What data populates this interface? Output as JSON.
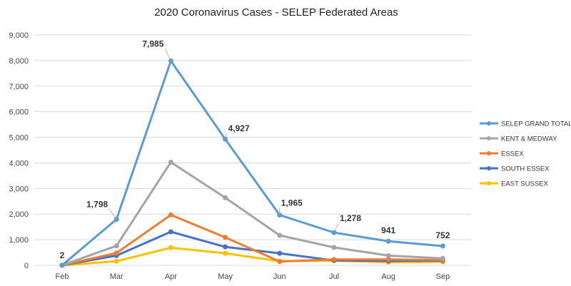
{
  "chart_data": {
    "type": "line",
    "title": "2020 Coronavirus Cases - SELEP Federated Areas",
    "xlabel": "",
    "ylabel": "",
    "categories": [
      "Feb",
      "Mar",
      "Apr",
      "May",
      "Jun",
      "Jul",
      "Aug",
      "Sep"
    ],
    "ylim": [
      0,
      9000
    ],
    "yticks": [
      "0",
      "1,000",
      "2,000",
      "3,000",
      "4,000",
      "5,000",
      "6,000",
      "7,000",
      "8,000",
      "9,000"
    ],
    "grid": true,
    "legend_position": "right",
    "series": [
      {
        "name": "SELEP GRAND TOTAL",
        "color": "#5B9BD5",
        "values": [
          2,
          1798,
          7985,
          4927,
          1965,
          1278,
          941,
          752
        ]
      },
      {
        "name": "KENT  & MEDWAY",
        "color": "#A5A5A5",
        "values": [
          5,
          760,
          4030,
          2640,
          1170,
          700,
          380,
          270
        ]
      },
      {
        "name": "ESSEX",
        "color": "#ED7D31",
        "values": [
          2,
          480,
          1970,
          1090,
          150,
          230,
          230,
          210
        ]
      },
      {
        "name": "SOUTH ESSEX",
        "color": "#4472C4",
        "values": [
          1,
          380,
          1310,
          720,
          470,
          190,
          170,
          180
        ]
      },
      {
        "name": "EAST SUSSEX",
        "color": "#FFC000",
        "values": [
          0,
          160,
          690,
          470,
          160,
          180,
          120,
          140
        ]
      }
    ],
    "data_labels": [
      "2",
      "1,798",
      "7,985",
      "4,927",
      "1,965",
      "1,278",
      "941",
      "752"
    ]
  }
}
